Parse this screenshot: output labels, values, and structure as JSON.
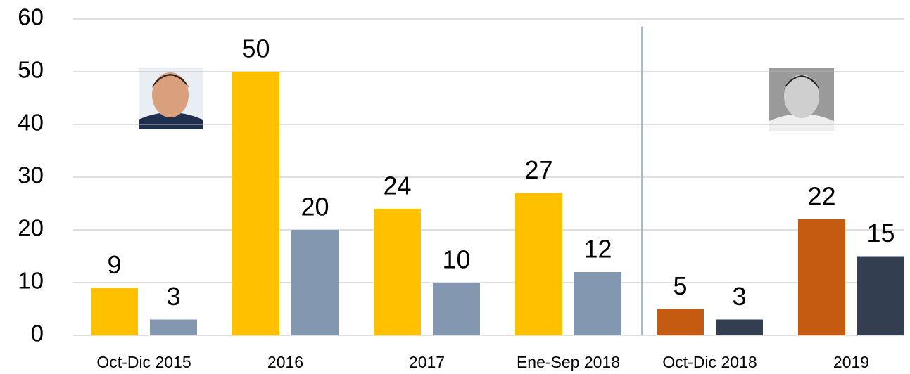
{
  "chart_data": {
    "type": "bar",
    "categories": [
      "Oct-Dic 2015",
      "2016",
      "2017",
      "Ene-Sep 2018",
      "Oct-Dic 2018",
      "2019"
    ],
    "series": [
      {
        "colors": [
          "#ffc000",
          "#ffc000",
          "#ffc000",
          "#ffc000",
          "#c55a11",
          "#c55a11"
        ],
        "values": [
          9,
          50,
          24,
          27,
          5,
          22
        ]
      },
      {
        "colors": [
          "#8497b0",
          "#8497b0",
          "#8497b0",
          "#8497b0",
          "#333f50",
          "#333f50"
        ],
        "values": [
          3,
          20,
          10,
          12,
          3,
          15
        ]
      }
    ],
    "ylim": [
      0,
      60
    ],
    "yticks": [
      0,
      10,
      20,
      30,
      40,
      50,
      60
    ],
    "grid": true
  }
}
